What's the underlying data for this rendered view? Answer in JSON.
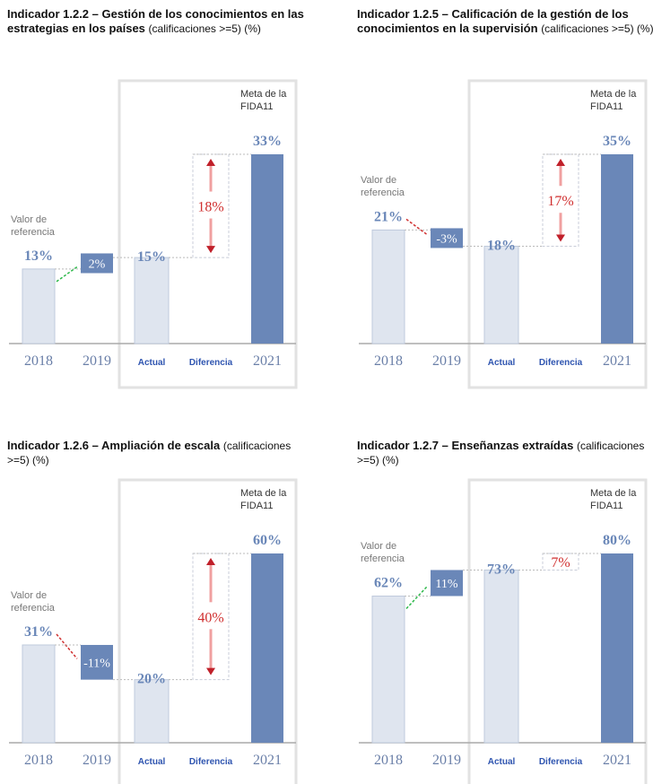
{
  "chart_data": [
    {
      "type": "waterfall",
      "title": "Indicador 1.2.2 – Gestión de los conocimientos en las estrategias en los países",
      "subtitle": "(calificaciones >=5) (%)",
      "baseline_label": "Valor de referencia",
      "target_label": "Meta de la FIDA11",
      "categories": [
        "2018",
        "2019",
        "Actual",
        "Diferencia",
        "2021"
      ],
      "values": [
        13,
        2,
        15,
        18,
        33
      ],
      "value_labels": [
        "13%",
        "2%",
        "15%",
        "18%",
        "33%"
      ]
    },
    {
      "type": "waterfall",
      "title": "Indicador 1.2.5 – Calificación de la gestión de los conocimientos en la supervisión",
      "subtitle": "(calificaciones >=5) (%)",
      "baseline_label": "Valor de referencia",
      "target_label": "Meta de la FIDA11",
      "categories": [
        "2018",
        "2019",
        "Actual",
        "Diferencia",
        "2021"
      ],
      "values": [
        21,
        -3,
        18,
        17,
        35
      ],
      "value_labels": [
        "21%",
        "-3%",
        "18%",
        "17%",
        "35%"
      ]
    },
    {
      "type": "waterfall",
      "title": "Indicador 1.2.6 – Ampliación de escala",
      "subtitle": "(calificaciones >=5) (%)",
      "baseline_label": "Valor de referencia",
      "target_label": "Meta de la FIDA11",
      "categories": [
        "2018",
        "2019",
        "Actual",
        "Diferencia",
        "2021"
      ],
      "values": [
        31,
        -11,
        20,
        40,
        60
      ],
      "value_labels": [
        "31%",
        "-11%",
        "20%",
        "40%",
        "60%"
      ]
    },
    {
      "type": "waterfall",
      "title": "Indicador 1.2.7 – Enseñanzas extraídas",
      "subtitle": "(calificaciones >=5) (%)",
      "baseline_label": "Valor de referencia",
      "target_label": "Meta de la FIDA11",
      "categories": [
        "2018",
        "2019",
        "Actual",
        "Diferencia",
        "2021"
      ],
      "values": [
        62,
        11,
        73,
        7,
        80
      ],
      "value_labels": [
        "62%",
        "11%",
        "73%",
        "7%",
        "80%"
      ]
    }
  ]
}
